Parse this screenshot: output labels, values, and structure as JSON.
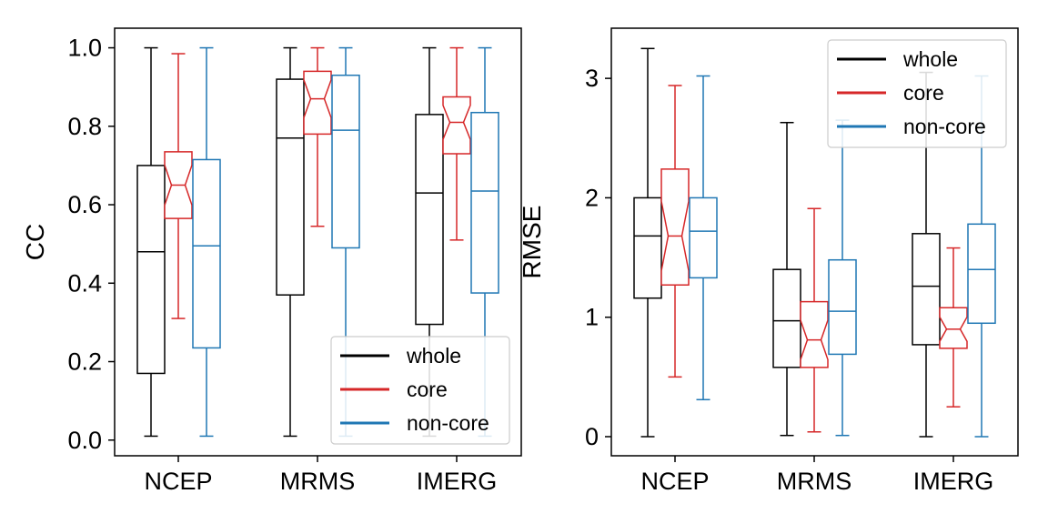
{
  "chart_data": [
    {
      "type": "box",
      "ylabel": "CC",
      "xlabel": "",
      "categories": [
        "NCEP",
        "MRMS",
        "IMERG"
      ],
      "ylim": [
        -0.04,
        1.05
      ],
      "yticks": [
        0.0,
        0.2,
        0.4,
        0.6,
        0.8,
        1.0
      ],
      "ytick_labels": [
        "0.0",
        "0.2",
        "0.4",
        "0.6",
        "0.8",
        "1.0"
      ],
      "legend_position": "lower-right",
      "series": [
        {
          "name": "whole",
          "color": "#000000",
          "notched": false,
          "boxes": [
            {
              "min": 0.01,
              "q1": 0.17,
              "median": 0.48,
              "q3": 0.7,
              "max": 1.0
            },
            {
              "min": 0.01,
              "q1": 0.37,
              "median": 0.77,
              "q3": 0.92,
              "max": 1.0
            },
            {
              "min": 0.01,
              "q1": 0.295,
              "median": 0.63,
              "q3": 0.83,
              "max": 1.0
            }
          ]
        },
        {
          "name": "core",
          "color": "#d62728",
          "notched": true,
          "boxes": [
            {
              "min": 0.31,
              "q1": 0.565,
              "median": 0.65,
              "q3": 0.735,
              "max": 0.985
            },
            {
              "min": 0.545,
              "q1": 0.78,
              "median": 0.87,
              "q3": 0.94,
              "max": 1.0
            },
            {
              "min": 0.51,
              "q1": 0.73,
              "median": 0.81,
              "q3": 0.875,
              "max": 1.0
            }
          ]
        },
        {
          "name": "non-core",
          "color": "#1f77b4",
          "notched": false,
          "boxes": [
            {
              "min": 0.01,
              "q1": 0.235,
              "median": 0.495,
              "q3": 0.715,
              "max": 1.0
            },
            {
              "min": 0.01,
              "q1": 0.49,
              "median": 0.79,
              "q3": 0.93,
              "max": 1.0
            },
            {
              "min": 0.01,
              "q1": 0.375,
              "median": 0.635,
              "q3": 0.835,
              "max": 1.0
            }
          ]
        }
      ]
    },
    {
      "type": "box",
      "ylabel": "RMSE",
      "xlabel": "",
      "categories": [
        "NCEP",
        "MRMS",
        "IMERG"
      ],
      "ylim": [
        -0.16,
        3.42
      ],
      "yticks": [
        0,
        1,
        2,
        3
      ],
      "ytick_labels": [
        "0",
        "1",
        "2",
        "3"
      ],
      "legend_position": "upper-right",
      "series": [
        {
          "name": "whole",
          "color": "#000000",
          "notched": false,
          "boxes": [
            {
              "min": 0.0,
              "q1": 1.16,
              "median": 1.68,
              "q3": 2.0,
              "max": 3.25
            },
            {
              "min": 0.01,
              "q1": 0.58,
              "median": 0.97,
              "q3": 1.4,
              "max": 2.63
            },
            {
              "min": 0.0,
              "q1": 0.77,
              "median": 1.26,
              "q3": 1.7,
              "max": 3.05
            }
          ]
        },
        {
          "name": "core",
          "color": "#d62728",
          "notched": true,
          "boxes": [
            {
              "min": 0.5,
              "q1": 1.27,
              "median": 1.68,
              "q3": 2.24,
              "max": 2.94
            },
            {
              "min": 0.04,
              "q1": 0.58,
              "median": 0.81,
              "q3": 1.13,
              "max": 1.91
            },
            {
              "min": 0.25,
              "q1": 0.74,
              "median": 0.9,
              "q3": 1.08,
              "max": 1.58
            }
          ]
        },
        {
          "name": "non-core",
          "color": "#1f77b4",
          "notched": false,
          "boxes": [
            {
              "min": 0.31,
              "q1": 1.33,
              "median": 1.72,
              "q3": 2.0,
              "max": 3.02
            },
            {
              "min": 0.01,
              "q1": 0.69,
              "median": 1.05,
              "q3": 1.48,
              "max": 2.65
            },
            {
              "min": 0.0,
              "q1": 0.95,
              "median": 1.4,
              "q3": 1.78,
              "max": 3.02
            }
          ]
        }
      ]
    }
  ]
}
